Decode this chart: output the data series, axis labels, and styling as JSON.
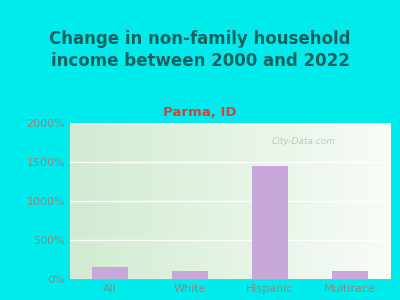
{
  "title": "Change in non-family household\nincome between 2000 and 2022",
  "subtitle": "Parma, ID",
  "categories": [
    "All",
    "White",
    "Hispanic",
    "Multirace"
  ],
  "values": [
    150,
    100,
    1450,
    100
  ],
  "bar_color": "#c8a8d8",
  "background_color": "#00ecec",
  "title_color": "#1a6060",
  "subtitle_color": "#cc4444",
  "tick_color": "#888888",
  "ylim": [
    0,
    2000
  ],
  "yticks": [
    0,
    500,
    1000,
    1500,
    2000
  ],
  "ytick_labels": [
    "0%",
    "500%",
    "1000%",
    "1500%",
    "2000%"
  ],
  "watermark": "City-Data.com",
  "title_fontsize": 12,
  "subtitle_fontsize": 9.5,
  "tick_fontsize": 8
}
